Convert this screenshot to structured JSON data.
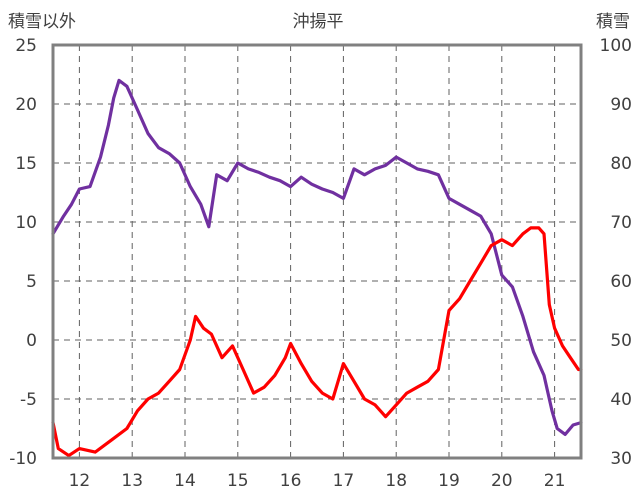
{
  "chart_data": {
    "type": "line",
    "title": "沖揚平",
    "left_axis_label": "積雪以外",
    "right_axis_label": "積雪",
    "x_ticks": [
      "12",
      "13",
      "14",
      "15",
      "16",
      "17",
      "18",
      "19",
      "20",
      "21"
    ],
    "x_range": [
      11.5,
      21.5
    ],
    "y_left_range": [
      -10,
      25
    ],
    "y_left_ticks": [
      "25",
      "20",
      "15",
      "10",
      "5",
      "0",
      "-5",
      "-10"
    ],
    "y_right_range": [
      30,
      100
    ],
    "y_right_ticks": [
      "100",
      "90",
      "80",
      "70",
      "60",
      "50",
      "40",
      "30"
    ],
    "grid": "dashed",
    "colors": {
      "purple": "#7030a0",
      "red": "#ff0000",
      "axis": "#808080",
      "grid": "#606060",
      "text": "#404040"
    },
    "series": [
      {
        "color": "purple",
        "axis": "left",
        "points": [
          [
            11.5,
            9.0
          ],
          [
            11.7,
            10.5
          ],
          [
            11.85,
            11.5
          ],
          [
            12.0,
            12.8
          ],
          [
            12.2,
            13.0
          ],
          [
            12.4,
            15.5
          ],
          [
            12.55,
            18.2
          ],
          [
            12.65,
            20.5
          ],
          [
            12.75,
            22.0
          ],
          [
            12.9,
            21.5
          ],
          [
            13.1,
            19.5
          ],
          [
            13.3,
            17.5
          ],
          [
            13.5,
            16.3
          ],
          [
            13.7,
            15.8
          ],
          [
            13.9,
            15.0
          ],
          [
            14.1,
            13.0
          ],
          [
            14.3,
            11.5
          ],
          [
            14.45,
            9.6
          ],
          [
            14.6,
            14.0
          ],
          [
            14.8,
            13.5
          ],
          [
            15.0,
            15.0
          ],
          [
            15.2,
            14.5
          ],
          [
            15.4,
            14.2
          ],
          [
            15.6,
            13.8
          ],
          [
            15.8,
            13.5
          ],
          [
            16.0,
            13.0
          ],
          [
            16.2,
            13.8
          ],
          [
            16.4,
            13.2
          ],
          [
            16.6,
            12.8
          ],
          [
            16.8,
            12.5
          ],
          [
            17.0,
            12.0
          ],
          [
            17.2,
            14.5
          ],
          [
            17.4,
            14.0
          ],
          [
            17.6,
            14.5
          ],
          [
            17.8,
            14.8
          ],
          [
            18.0,
            15.5
          ],
          [
            18.2,
            15.0
          ],
          [
            18.4,
            14.5
          ],
          [
            18.6,
            14.3
          ],
          [
            18.8,
            14.0
          ],
          [
            19.0,
            12.0
          ],
          [
            19.2,
            11.5
          ],
          [
            19.4,
            11.0
          ],
          [
            19.6,
            10.5
          ],
          [
            19.8,
            9.0
          ],
          [
            20.0,
            5.5
          ],
          [
            20.2,
            4.5
          ],
          [
            20.4,
            2.0
          ],
          [
            20.6,
            -1.0
          ],
          [
            20.8,
            -3.0
          ],
          [
            20.95,
            -6.0
          ],
          [
            21.05,
            -7.5
          ],
          [
            21.2,
            -8.0
          ],
          [
            21.35,
            -7.2
          ],
          [
            21.5,
            -7.0
          ]
        ]
      },
      {
        "color": "red",
        "axis": "left",
        "points": [
          [
            11.5,
            -7.0
          ],
          [
            11.6,
            -9.2
          ],
          [
            11.8,
            -9.8
          ],
          [
            12.0,
            -9.2
          ],
          [
            12.3,
            -9.5
          ],
          [
            12.6,
            -8.5
          ],
          [
            12.9,
            -7.5
          ],
          [
            13.1,
            -6.0
          ],
          [
            13.3,
            -5.0
          ],
          [
            13.5,
            -4.5
          ],
          [
            13.7,
            -3.5
          ],
          [
            13.9,
            -2.5
          ],
          [
            14.1,
            0.0
          ],
          [
            14.2,
            2.0
          ],
          [
            14.35,
            1.0
          ],
          [
            14.5,
            0.5
          ],
          [
            14.7,
            -1.5
          ],
          [
            14.9,
            -0.5
          ],
          [
            15.1,
            -2.5
          ],
          [
            15.3,
            -4.5
          ],
          [
            15.5,
            -4.0
          ],
          [
            15.7,
            -3.0
          ],
          [
            15.9,
            -1.5
          ],
          [
            16.0,
            -0.3
          ],
          [
            16.2,
            -2.0
          ],
          [
            16.4,
            -3.5
          ],
          [
            16.6,
            -4.5
          ],
          [
            16.8,
            -5.0
          ],
          [
            17.0,
            -2.0
          ],
          [
            17.2,
            -3.5
          ],
          [
            17.4,
            -5.0
          ],
          [
            17.6,
            -5.5
          ],
          [
            17.8,
            -6.5
          ],
          [
            18.0,
            -5.5
          ],
          [
            18.2,
            -4.5
          ],
          [
            18.4,
            -4.0
          ],
          [
            18.6,
            -3.5
          ],
          [
            18.8,
            -2.5
          ],
          [
            19.0,
            2.5
          ],
          [
            19.2,
            3.5
          ],
          [
            19.4,
            5.0
          ],
          [
            19.6,
            6.5
          ],
          [
            19.8,
            8.0
          ],
          [
            20.0,
            8.5
          ],
          [
            20.2,
            8.0
          ],
          [
            20.4,
            9.0
          ],
          [
            20.55,
            9.5
          ],
          [
            20.7,
            9.5
          ],
          [
            20.8,
            9.0
          ],
          [
            20.9,
            3.0
          ],
          [
            21.0,
            1.0
          ],
          [
            21.15,
            -0.5
          ],
          [
            21.3,
            -1.5
          ],
          [
            21.45,
            -2.5
          ],
          [
            21.5,
            -2.5
          ]
        ]
      }
    ]
  }
}
